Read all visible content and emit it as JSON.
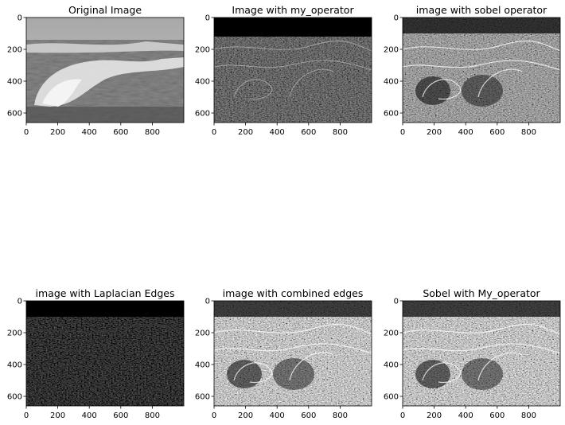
{
  "figure": {
    "layout": "2x3 grid of grayscale image panels",
    "panels": [
      {
        "title": "Original Image",
        "style": "original"
      },
      {
        "title": "Image with my_operator",
        "style": "myop"
      },
      {
        "title": "image with sobel operator",
        "style": "sobel"
      },
      {
        "title": "image with Laplacian Edges",
        "style": "laplacian"
      },
      {
        "title": "image with combined edges",
        "style": "combined"
      },
      {
        "title": "Sobel with My_operator",
        "style": "sobelmy"
      }
    ],
    "x_ticks": [
      "0",
      "200",
      "400",
      "600",
      "800"
    ],
    "y_ticks": [
      "0",
      "200",
      "400",
      "600"
    ],
    "colors": {
      "axis": "#000000",
      "background": "#ffffff"
    }
  }
}
